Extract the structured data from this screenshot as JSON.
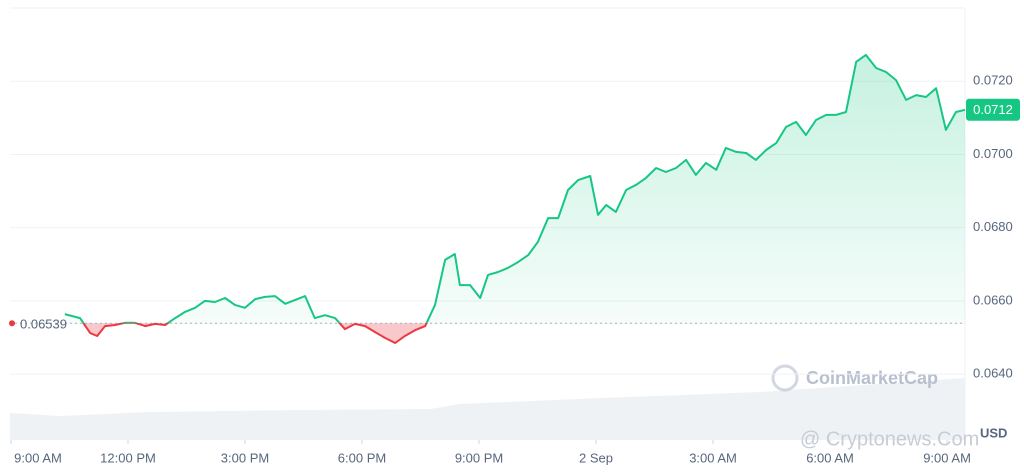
{
  "chart_data": {
    "type": "line",
    "x": [
      1.38,
      1.77,
      2.03,
      2.21,
      2.41,
      2.67,
      2.92,
      3.18,
      3.44,
      3.69,
      3.95,
      4.21,
      4.46,
      4.72,
      4.97,
      5.23,
      5.49,
      5.74,
      6.0,
      6.26,
      6.51,
      6.77,
      7.03,
      7.28,
      7.54,
      7.79,
      8.05,
      8.31,
      8.56,
      8.82,
      9.08,
      9.33,
      9.59,
      9.85,
      10.1,
      10.36,
      10.62,
      10.87,
      11.13,
      11.38,
      11.51,
      11.77,
      12.03,
      12.23,
      12.49,
      12.74,
      13.0,
      13.26,
      13.51,
      13.77,
      14.03,
      14.28,
      14.54,
      14.85,
      15.05,
      15.26,
      15.51,
      15.77,
      16.03,
      16.28,
      16.54,
      16.79,
      17.05,
      17.31,
      17.56,
      17.82,
      18.08,
      18.33,
      18.59,
      18.85,
      19.1,
      19.36,
      19.62,
      19.87,
      20.13,
      20.38,
      20.64,
      20.9,
      21.15,
      21.41,
      21.67,
      21.92,
      22.18,
      22.44,
      22.69,
      22.95,
      23.21,
      23.46,
      23.72,
      23.97,
      24.23,
      24.46
    ],
    "values": [
      0.06564,
      0.06553,
      0.06512,
      0.06504,
      0.06531,
      0.06534,
      0.0654,
      0.0654,
      0.06531,
      0.06537,
      0.06534,
      0.06553,
      0.0657,
      0.06581,
      0.066,
      0.06597,
      0.06608,
      0.06589,
      0.06581,
      0.06605,
      0.06611,
      0.06613,
      0.06592,
      0.06602,
      0.06613,
      0.06553,
      0.06561,
      0.06553,
      0.06523,
      0.06537,
      0.06531,
      0.06515,
      0.06499,
      0.06485,
      0.06504,
      0.0652,
      0.06531,
      0.06589,
      0.06712,
      0.06728,
      0.06643,
      0.06643,
      0.06608,
      0.06671,
      0.06679,
      0.0669,
      0.06706,
      0.06725,
      0.06761,
      0.06826,
      0.06826,
      0.06903,
      0.0693,
      0.06941,
      0.06835,
      0.06862,
      0.06843,
      0.06903,
      0.06917,
      0.06936,
      0.06963,
      0.06952,
      0.06963,
      0.06985,
      0.06944,
      0.06977,
      0.06958,
      0.07018,
      0.07007,
      0.07004,
      0.06985,
      0.07012,
      0.07031,
      0.07075,
      0.07089,
      0.07053,
      0.07094,
      0.07108,
      0.07108,
      0.07116,
      0.07253,
      0.07272,
      0.07236,
      0.07225,
      0.07203,
      0.07149,
      0.07162,
      0.07157,
      0.07181,
      0.07067,
      0.07116,
      0.07122
    ],
    "current_price_label": "0.0712",
    "baseline": 0.06539,
    "colors": {
      "up": "#16c784",
      "down": "#ea3943"
    },
    "xlim": [
      0,
      24.46
    ],
    "xticks": [
      {
        "value": 0,
        "label": "9:00 AM"
      },
      {
        "value": 3,
        "label": "12:00 PM"
      },
      {
        "value": 6,
        "label": "3:00 PM"
      },
      {
        "value": 9,
        "label": "6:00 PM"
      },
      {
        "value": 12,
        "label": "9:00 PM"
      },
      {
        "value": 15,
        "label": "2 Sep"
      },
      {
        "value": 18,
        "label": "3:00 AM"
      },
      {
        "value": 21,
        "label": "6:00 AM"
      },
      {
        "value": 24,
        "label": "9:00 AM"
      }
    ],
    "ylim": [
      0.0622,
      0.074
    ],
    "yticks": [
      {
        "value": 0.064,
        "label": "0.0640"
      },
      {
        "value": 0.066,
        "label": "0.0660"
      },
      {
        "value": 0.068,
        "label": "0.0680"
      },
      {
        "value": 0.07,
        "label": "0.0700"
      },
      {
        "value": 0.072,
        "label": "0.0720"
      }
    ],
    "grid": true,
    "currency": "USD",
    "watermarks": [
      "CoinMarketCap",
      "@ Cryptonews.Com"
    ]
  }
}
